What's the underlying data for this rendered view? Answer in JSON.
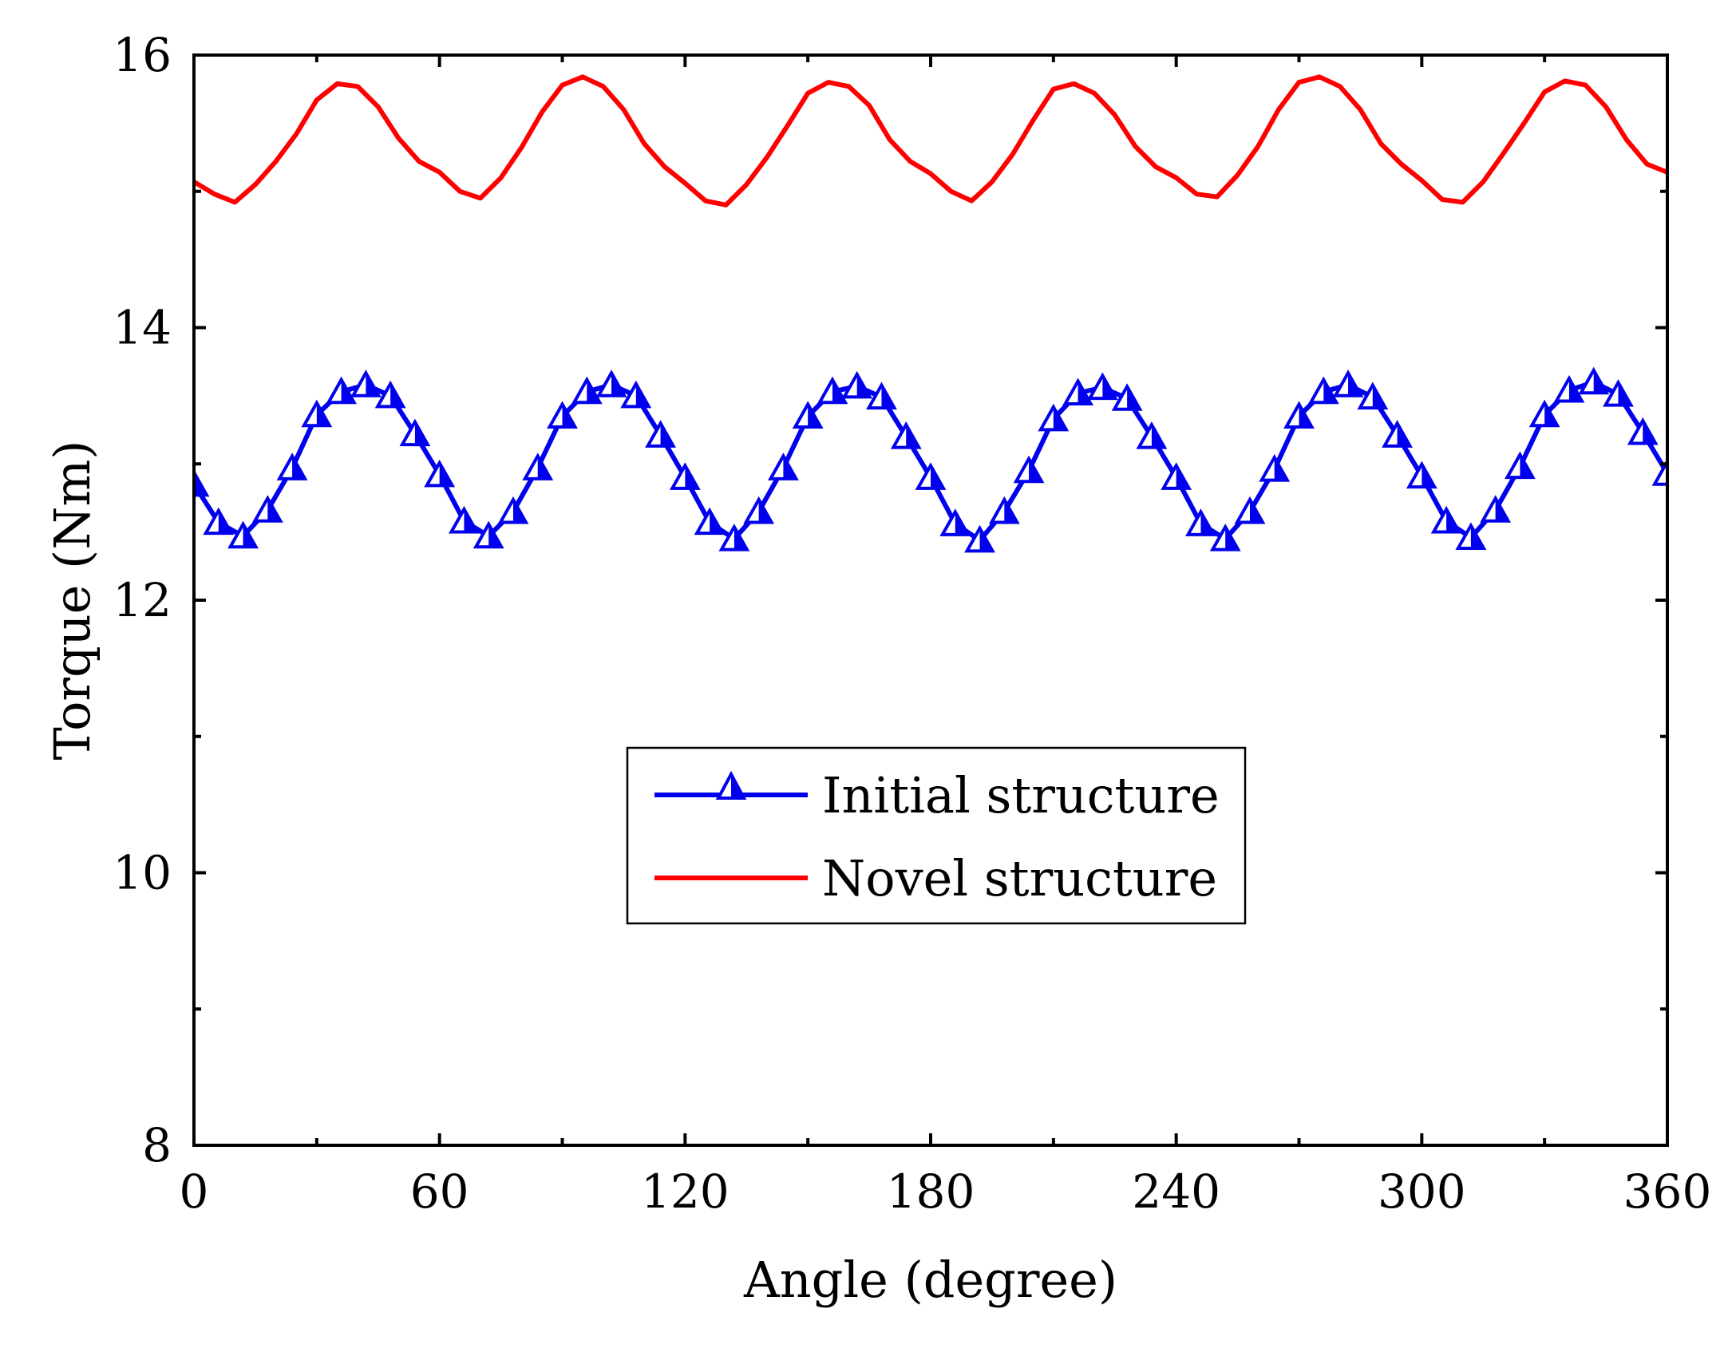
{
  "chart_data": {
    "type": "line",
    "title": "",
    "xlabel": "Angle (degree)",
    "ylabel": "Torque (Nm)",
    "xlim": [
      0,
      360
    ],
    "ylim": [
      8,
      16
    ],
    "xticks": [
      0,
      60,
      120,
      180,
      240,
      300,
      360
    ],
    "xtick_labels": [
      "0",
      "60",
      "120",
      "180",
      "240",
      "300",
      "360"
    ],
    "yticks": [
      8,
      10,
      12,
      14,
      16
    ],
    "ytick_labels": [
      "8",
      "10",
      "12",
      "14",
      "16"
    ],
    "legend_position": "center",
    "grid": false,
    "series": [
      {
        "name": "Initial structure",
        "color": "#0000ee",
        "marker": "triangle-open",
        "x": [
          0,
          6,
          12,
          18,
          24,
          30,
          36,
          42,
          48,
          54,
          60,
          66,
          72,
          78,
          84,
          90,
          96,
          102,
          108,
          114,
          120,
          126,
          132,
          138,
          144,
          150,
          156,
          162,
          168,
          174,
          180,
          186,
          192,
          198,
          204,
          210,
          216,
          222,
          228,
          234,
          240,
          246,
          252,
          258,
          264,
          270,
          276,
          282,
          288,
          294,
          300,
          306,
          312,
          318,
          324,
          330,
          336,
          342,
          348,
          354,
          360
        ],
        "values": [
          12.85,
          12.57,
          12.47,
          12.66,
          12.97,
          13.36,
          13.53,
          13.58,
          13.5,
          13.22,
          12.92,
          12.58,
          12.47,
          12.65,
          12.97,
          13.35,
          13.53,
          13.58,
          13.5,
          13.21,
          12.9,
          12.57,
          12.45,
          12.65,
          12.97,
          13.35,
          13.53,
          13.57,
          13.49,
          13.2,
          12.9,
          12.56,
          12.44,
          12.65,
          12.95,
          13.33,
          13.52,
          13.56,
          13.48,
          13.2,
          12.9,
          12.56,
          12.45,
          12.65,
          12.96,
          13.35,
          13.53,
          13.58,
          13.49,
          13.21,
          12.91,
          12.58,
          12.46,
          12.66,
          12.98,
          13.36,
          13.54,
          13.6,
          13.51,
          13.23,
          12.93
        ]
      },
      {
        "name": "Novel structure",
        "color": "#ff0000",
        "marker": "none",
        "x": [
          0,
          5,
          10,
          15,
          20,
          25,
          30,
          35,
          40,
          45,
          50,
          55,
          60,
          65,
          70,
          75,
          80,
          85,
          90,
          95,
          100,
          105,
          110,
          115,
          120,
          125,
          130,
          135,
          140,
          145,
          150,
          155,
          160,
          165,
          170,
          175,
          180,
          185,
          190,
          195,
          200,
          205,
          210,
          215,
          220,
          225,
          230,
          235,
          240,
          245,
          250,
          255,
          260,
          265,
          270,
          275,
          280,
          285,
          290,
          295,
          300,
          305,
          310,
          315,
          320,
          325,
          330,
          335,
          340,
          345,
          350,
          355,
          360
        ],
        "values": [
          15.07,
          14.98,
          14.92,
          15.05,
          15.22,
          15.42,
          15.67,
          15.79,
          15.77,
          15.62,
          15.39,
          15.22,
          15.14,
          15.0,
          14.95,
          15.1,
          15.32,
          15.58,
          15.78,
          15.84,
          15.77,
          15.6,
          15.35,
          15.18,
          15.06,
          14.93,
          14.9,
          15.05,
          15.25,
          15.48,
          15.72,
          15.8,
          15.77,
          15.63,
          15.38,
          15.22,
          15.13,
          15.0,
          14.93,
          15.07,
          15.27,
          15.52,
          15.75,
          15.79,
          15.72,
          15.56,
          15.33,
          15.18,
          15.1,
          14.98,
          14.96,
          15.12,
          15.33,
          15.6,
          15.8,
          15.84,
          15.77,
          15.6,
          15.35,
          15.2,
          15.08,
          14.94,
          14.92,
          15.07,
          15.28,
          15.5,
          15.73,
          15.81,
          15.78,
          15.62,
          15.38,
          15.2,
          15.14
        ]
      }
    ]
  }
}
